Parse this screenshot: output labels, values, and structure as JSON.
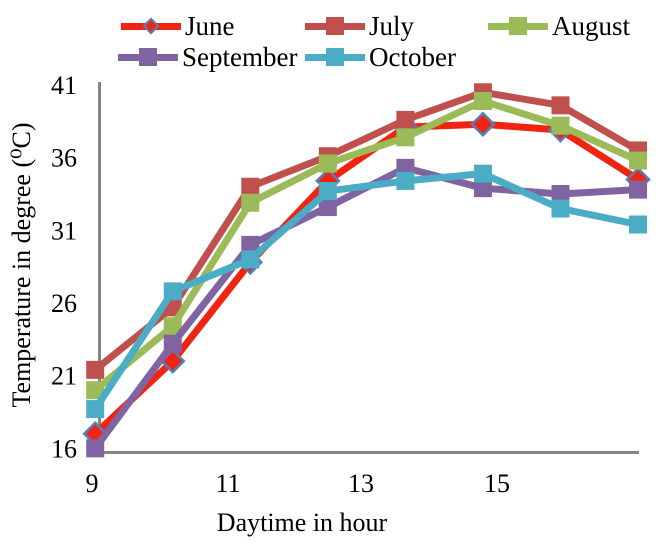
{
  "chart_data": {
    "type": "line",
    "title": "",
    "xlabel": "Daytime in hour",
    "ylabel": "Temperature in degree (⁰C)",
    "x": [
      9,
      10,
      11,
      12,
      13,
      14,
      15,
      16
    ],
    "x_tick_labels": [
      "9",
      "11",
      "13",
      "15"
    ],
    "y_ticks": [
      16,
      21,
      26,
      31,
      36,
      41
    ],
    "ylim": [
      16,
      41
    ],
    "grid": false,
    "legend_position": "top",
    "axis_color": "#848484",
    "series": [
      {
        "name": "June",
        "color": "#F02411",
        "marker": "diamond",
        "marker_border": "#4F81BD",
        "values": [
          17.0,
          22.0,
          28.8,
          34.4,
          38.1,
          38.3,
          37.9,
          34.5
        ]
      },
      {
        "name": "July",
        "color": "#C0504D",
        "marker": "square",
        "values": [
          21.4,
          25.7,
          34.0,
          36.1,
          38.6,
          40.5,
          39.6,
          36.5
        ]
      },
      {
        "name": "August",
        "color": "#9BBB59",
        "marker": "square",
        "values": [
          20.0,
          24.4,
          32.9,
          35.6,
          37.4,
          39.9,
          38.2,
          35.8
        ]
      },
      {
        "name": "September",
        "color": "#8064A2",
        "marker": "square",
        "values": [
          16.0,
          23.2,
          30.0,
          32.6,
          35.3,
          33.9,
          33.5,
          33.8
        ]
      },
      {
        "name": "October",
        "color": "#4BACC6",
        "marker": "square",
        "values": [
          18.7,
          26.8,
          29.0,
          33.7,
          34.4,
          34.9,
          32.5,
          31.4
        ]
      }
    ]
  }
}
